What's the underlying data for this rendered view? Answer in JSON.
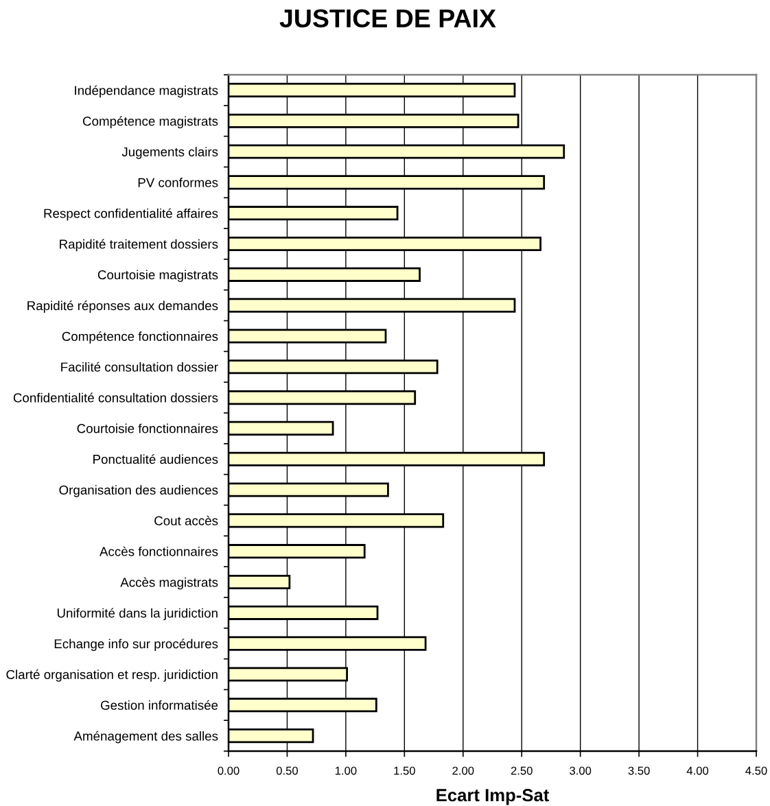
{
  "chart_data": {
    "type": "bar",
    "orientation": "horizontal",
    "title": "JUSTICE DE PAIX",
    "xlabel": "Ecart Imp-Sat",
    "categories": [
      "Indépendance magistrats",
      "Compétence magistrats",
      "Jugements clairs",
      "PV conformes",
      "Respect confidentialité affaires",
      "Rapidité traitement dossiers",
      "Courtoisie magistrats",
      "Rapidité réponses aux demandes",
      "Compétence fonctionnaires",
      "Facilité consultation dossier",
      "Confidentialité consultation dossiers",
      "Courtoisie fonctionnaires",
      "Ponctualité audiences",
      "Organisation des audiences",
      "Cout accès",
      "Accès fonctionnaires",
      "Accès magistrats",
      "Uniformité dans la juridiction",
      "Echange info sur procédures",
      "Clarté organisation et resp. juridiction",
      "Gestion informatisée",
      "Aménagement des salles"
    ],
    "values": [
      2.44,
      2.47,
      2.86,
      2.69,
      1.44,
      2.66,
      1.63,
      2.44,
      1.34,
      1.78,
      1.59,
      0.89,
      2.69,
      1.36,
      1.83,
      1.16,
      0.52,
      1.27,
      1.68,
      1.01,
      1.26,
      0.72
    ],
    "color": "#ffffcc",
    "xlim": [
      0,
      4.5
    ],
    "xticks": [
      {
        "value": 0,
        "label": "0.00"
      },
      {
        "value": 0.5,
        "label": "0.50"
      },
      {
        "value": 1,
        "label": "1.00"
      },
      {
        "value": 1.5,
        "label": "1.50"
      },
      {
        "value": 2,
        "label": "2.00"
      },
      {
        "value": 2.5,
        "label": "2.50"
      },
      {
        "value": 3,
        "label": "3.00"
      },
      {
        "value": 3.5,
        "label": "3.50"
      },
      {
        "value": 4,
        "label": "4.00"
      },
      {
        "value": 4.5,
        "label": "4.50"
      }
    ],
    "grid": "x"
  }
}
